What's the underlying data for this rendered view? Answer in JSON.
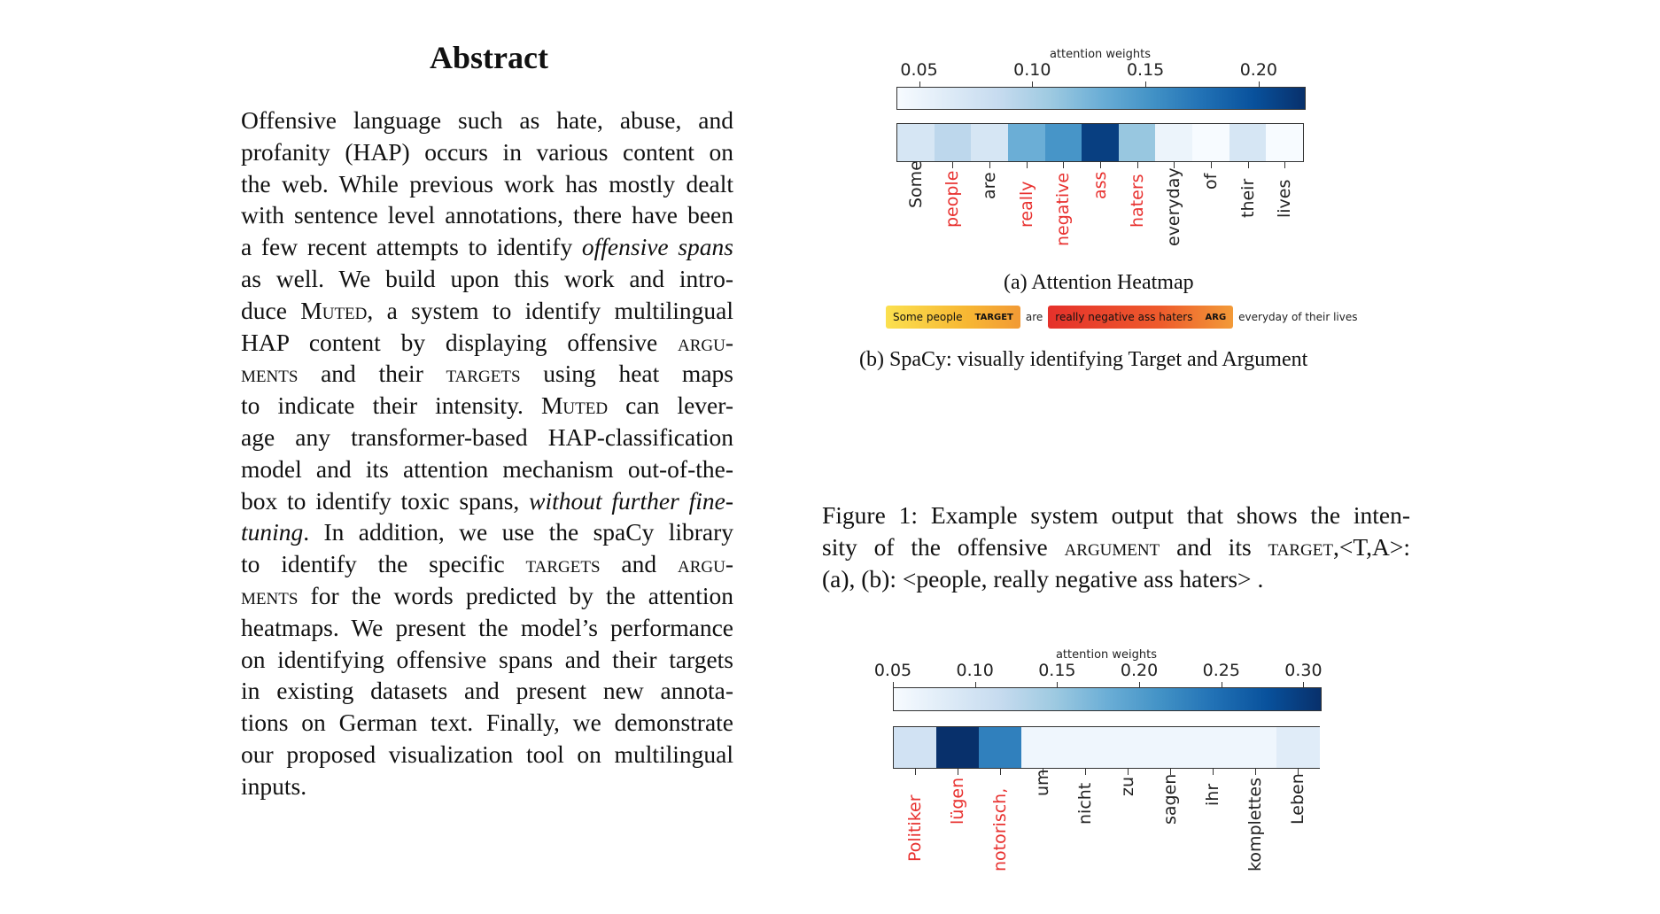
{
  "abstract": {
    "title": "Abstract",
    "lines": [
      "Offensive language such as hate, abuse, and",
      "profanity (HAP) occurs in various content on",
      "the web. While previous work has mostly dealt",
      "with sentence level annotations, there have been"
    ],
    "l5_pre": "a few recent attempts to identify ",
    "l5_em": "offensive spans",
    "l6": "as well.  We build upon this work and intro-",
    "l7_pre": "duce ",
    "l7_sc": "Muted",
    "l7_post": ", a system to identify multilingual",
    "l8_pre": "HAP content by displaying offensive ",
    "l8_sc": "argu-",
    "l9_sc1": "ments",
    "l9_mid": " and their ",
    "l9_sc2": "targets",
    "l9_post": " using heat maps",
    "l10_pre": "to indicate their intensity.  ",
    "l10_sc": "Muted",
    "l10_post": " can lever-",
    "l11": "age any transformer-based HAP-classification",
    "l12": "model and its attention mechanism out-of-the-",
    "l13_pre": "box to identify toxic spans, ",
    "l13_em": "without further fine-",
    "l14_em": "tuning",
    "l14_post": ".  In addition, we use the spaCy library",
    "l15_pre": "to identify the specific ",
    "l15_sc1": "targets",
    "l15_mid": " and ",
    "l15_sc2": "argu-",
    "l16_sc": "ments",
    "l16_post": " for the words predicted by the attention",
    "l17": "heatmaps. We present the model’s performance",
    "l18": "on identifying offensive spans and their targets",
    "l19": "in existing datasets and present new annota-",
    "l20": "tions on German text. Finally, we demonstrate",
    "l21": "our proposed visualization tool on multilingual",
    "l22": "inputs."
  },
  "heatmap_en": {
    "colorbar_title": "attention weights",
    "caption": "(a) Attention Heatmap"
  },
  "spacy": {
    "target_text": "Some people",
    "target_label": "TARGET",
    "connector": "are",
    "argument_text": "really negative ass haters",
    "argument_label": "ARG",
    "tail": "everyday of their lives",
    "caption": "(b) SpaCy: visually identifying Target and Argument"
  },
  "figure_caption": {
    "l1": "Figure 1: Example system output that shows the inten-",
    "l2_pre": "sity of the offensive ",
    "l2_sc1": "argument",
    "l2_mid": " and its ",
    "l2_sc2": "target",
    "l2_post": ",<T,A>:",
    "l3": "(a), (b): <people, really negative ass haters> ."
  },
  "heatmap_de": {
    "colorbar_title": "attention weights"
  },
  "colors": {
    "offensive_token": "#e8312f",
    "normal_token": "#222222",
    "target_highlight": "#f9d64a",
    "argument_highlight": "#ee4b2b"
  },
  "chart_data": [
    {
      "type": "heatmap",
      "title": "",
      "colorbar_label": "attention weights",
      "colorbar_ticks": [
        "0.05",
        "0.10",
        "0.15",
        "0.20"
      ],
      "colorbar_range": [
        0.04,
        0.22
      ],
      "colormap": "Blues",
      "tokens": [
        "Some",
        "people",
        "are",
        "really",
        "negative",
        "ass",
        "haters",
        "everyday",
        "of",
        "their",
        "lives"
      ],
      "values": [
        0.07,
        0.09,
        0.07,
        0.13,
        0.15,
        0.21,
        0.11,
        0.05,
        0.04,
        0.07,
        0.04
      ],
      "offensive_tokens": [
        "people",
        "really",
        "negative",
        "ass",
        "haters"
      ]
    },
    {
      "type": "heatmap",
      "title": "",
      "colorbar_label": "attention weights",
      "colorbar_ticks": [
        "0.05",
        "0.10",
        "0.15",
        "0.20",
        "0.25",
        "0.30"
      ],
      "colorbar_range": [
        0.05,
        0.31
      ],
      "colormap": "Blues",
      "tokens": [
        "Politiker",
        "lügen",
        "notorisch,",
        "um",
        "nicht",
        "zu",
        "sagen",
        "ihr",
        "komplettes",
        "Leben"
      ],
      "values": [
        0.1,
        0.31,
        0.23,
        0.06,
        0.06,
        0.06,
        0.06,
        0.06,
        0.06,
        0.08
      ],
      "offensive_tokens": [
        "Politiker",
        "lügen",
        "notorisch,"
      ]
    }
  ]
}
